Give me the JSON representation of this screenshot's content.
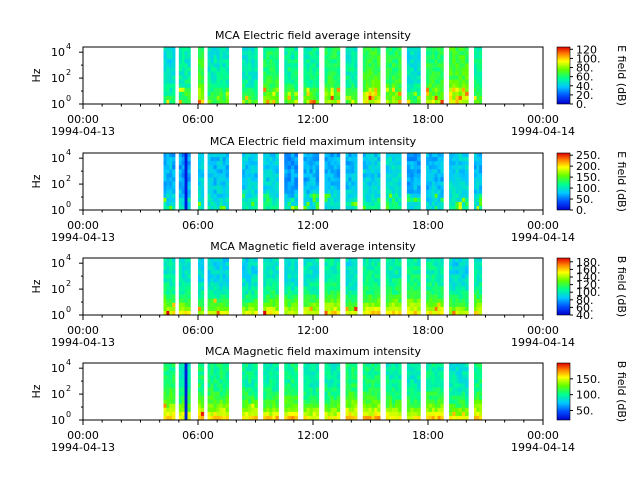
{
  "chart_data": [
    {
      "type": "heatmap",
      "title": "MCA  Electric field average intensity",
      "ylabel": "Hz",
      "y_ticks": [
        "10",
        "10",
        "10"
      ],
      "y_tick_exponents": [
        "4",
        "2",
        "0"
      ],
      "x_ticks": [
        "00:00",
        "06:00",
        "12:00",
        "18:00",
        "00:00"
      ],
      "x_tick_hours": [
        0,
        6,
        12,
        18,
        24
      ],
      "date_labels": [
        "1994-04-13",
        "1994-04-14"
      ],
      "colorbar_label": "E field (dB)",
      "colorbar_ticks": [
        "0.",
        "20.",
        "40.",
        "60.",
        "80.",
        "100.",
        "120"
      ],
      "colorbar_values": [
        0,
        20,
        40,
        60,
        80,
        100,
        120
      ],
      "zrange": [
        0,
        125
      ],
      "base_level": 0.45,
      "low_freq_boost": 0.15,
      "band_variation": 0.2,
      "spike_level": 0.72
    },
    {
      "type": "heatmap",
      "title": "MCA  Electric field maximum intensity",
      "ylabel": "Hz",
      "y_ticks": [
        "10",
        "10",
        "10"
      ],
      "y_tick_exponents": [
        "4",
        "2",
        "0"
      ],
      "x_ticks": [
        "00:00",
        "06:00",
        "12:00",
        "18:00",
        "00:00"
      ],
      "x_tick_hours": [
        0,
        6,
        12,
        18,
        24
      ],
      "date_labels": [
        "1994-04-13",
        "1994-04-14"
      ],
      "colorbar_label": "E field (dB)",
      "colorbar_ticks": [
        "0.",
        "50.",
        "100.",
        "150.",
        "200.",
        "250."
      ],
      "colorbar_values": [
        0,
        50,
        100,
        150,
        200,
        250
      ],
      "zrange": [
        0,
        260
      ],
      "base_level": 0.3,
      "low_freq_boost": 0.1,
      "band_variation": 0.12,
      "spike_level": 0.4
    },
    {
      "type": "heatmap",
      "title": "MCA  Magnetic field average intensity",
      "ylabel": "Hz",
      "y_ticks": [
        "10",
        "10",
        "10"
      ],
      "y_tick_exponents": [
        "4",
        "2",
        "0"
      ],
      "x_ticks": [
        "00:00",
        "06:00",
        "12:00",
        "18:00",
        "00:00"
      ],
      "x_tick_hours": [
        0,
        6,
        12,
        18,
        24
      ],
      "date_labels": [
        "1994-04-13",
        "1994-04-14"
      ],
      "colorbar_label": "B field (dB)",
      "colorbar_ticks": [
        "40.",
        "60.",
        "80.",
        "100.",
        "120.",
        "140.",
        "160.",
        "180."
      ],
      "colorbar_values": [
        40,
        60,
        80,
        100,
        120,
        140,
        160,
        180
      ],
      "zrange": [
        40,
        190
      ],
      "base_level": 0.38,
      "low_freq_boost": 0.35,
      "band_variation": 0.1,
      "spike_level": 0.1
    },
    {
      "type": "heatmap",
      "title": "MCA  Magnetic field maximum intensity",
      "ylabel": "Hz",
      "y_ticks": [
        "10",
        "10",
        "10"
      ],
      "y_tick_exponents": [
        "4",
        "2",
        "0"
      ],
      "x_ticks": [
        "00:00",
        "06:00",
        "12:00",
        "18:00",
        "00:00"
      ],
      "x_tick_hours": [
        0,
        6,
        12,
        18,
        24
      ],
      "date_labels": [
        "1994-04-13",
        "1994-04-14"
      ],
      "colorbar_label": "B field (dB)",
      "colorbar_ticks": [
        "50.",
        "100.",
        "150."
      ],
      "colorbar_values": [
        50,
        100,
        150
      ],
      "zrange": [
        20,
        200
      ],
      "base_level": 0.42,
      "low_freq_boost": 0.35,
      "band_variation": 0.1,
      "spike_level": 0.05
    }
  ],
  "data_segments_hours": [
    [
      4.2,
      4.8
    ],
    [
      5.0,
      5.6
    ],
    [
      6.0,
      6.3
    ],
    [
      6.5,
      7.6
    ],
    [
      8.3,
      9.1
    ],
    [
      9.4,
      10.2
    ],
    [
      10.5,
      11.2
    ],
    [
      11.5,
      12.3
    ],
    [
      12.6,
      13.4
    ],
    [
      13.7,
      14.3
    ],
    [
      14.6,
      15.5
    ],
    [
      15.8,
      16.6
    ],
    [
      16.9,
      17.6
    ],
    [
      17.9,
      18.8
    ],
    [
      19.1,
      20.1
    ],
    [
      20.4,
      20.8
    ]
  ]
}
